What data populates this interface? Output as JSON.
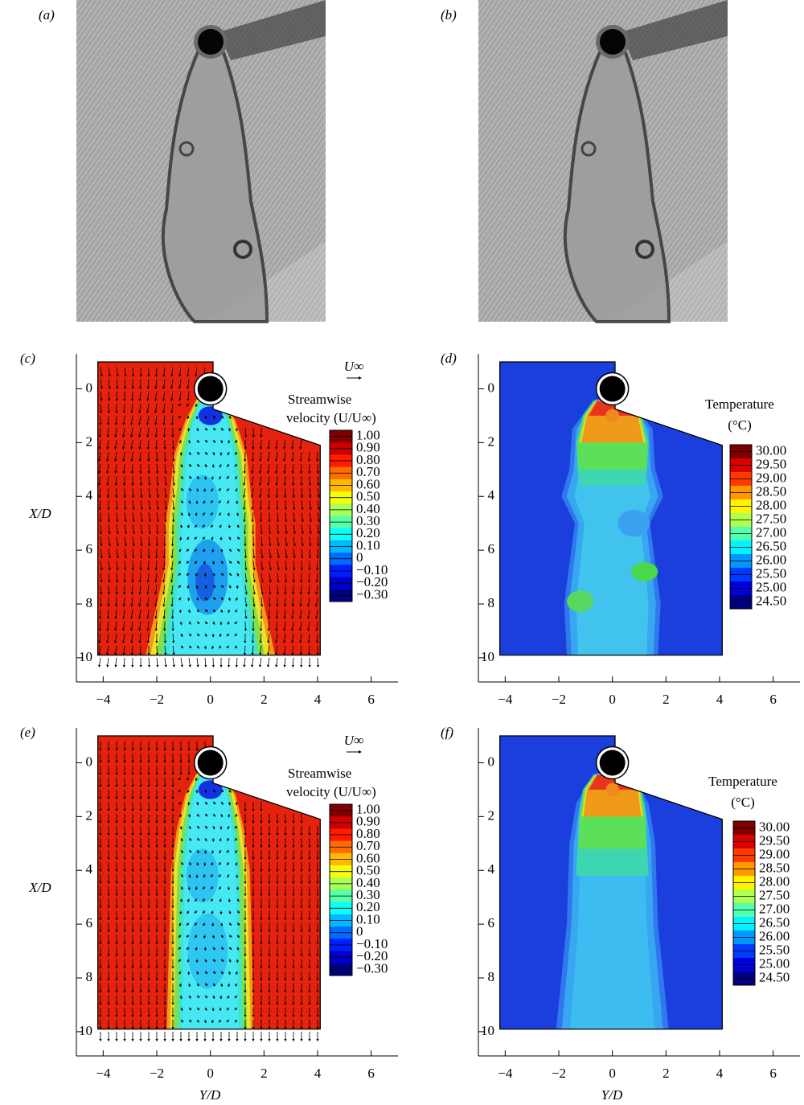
{
  "panel_labels": [
    "(a)",
    "(b)",
    "(c)",
    "(d)",
    "(e)",
    "(f)"
  ],
  "axes": {
    "xlim": [
      -5,
      7
    ],
    "ylim": [
      -1.3,
      10.9
    ],
    "y_inverted": true,
    "xticks": [
      {
        "value": -4,
        "label": "−4"
      },
      {
        "value": -2,
        "label": "−2"
      },
      0,
      2,
      4,
      6
    ],
    "yticks": [
      0,
      2,
      4,
      6,
      8,
      10
    ],
    "xlabel": "Y/D",
    "ylabel": "X/D"
  },
  "flow_label": "U∞",
  "velocity_colorbar": {
    "title": [
      "Streamwise",
      "velocity (U/U∞)"
    ],
    "levels": [
      {
        "value": 1,
        "label": "1.00"
      },
      {
        "value": 0.9,
        "label": "0.90"
      },
      {
        "value": 0.8,
        "label": "0.80"
      },
      {
        "value": 0.7,
        "label": "0.70"
      },
      {
        "value": 0.6,
        "label": "0.60"
      },
      {
        "value": 0.5,
        "label": "0.50"
      },
      {
        "value": 0.4,
        "label": "0.40"
      },
      {
        "value": 0.3,
        "label": "0.30"
      },
      {
        "value": 0.2,
        "label": "0.20"
      },
      {
        "value": 0.1,
        "label": "0.10"
      },
      0,
      {
        "value": -0.1,
        "label": "−0.10"
      },
      {
        "value": -0.2,
        "label": "−0.20"
      },
      {
        "value": -0.3,
        "label": "−0.30"
      }
    ]
  },
  "temperature_colorbar": {
    "title": [
      "Temperature",
      "(°C)"
    ],
    "levels": [
      {
        "value": 30,
        "label": "30.00"
      },
      {
        "value": 29.5,
        "label": "29.50"
      },
      {
        "value": 29,
        "label": "29.00"
      },
      {
        "value": 28.5,
        "label": "28.50"
      },
      {
        "value": 28,
        "label": "28.00"
      },
      {
        "value": 27.5,
        "label": "27.50"
      },
      {
        "value": 27,
        "label": "27.00"
      },
      {
        "value": 26.5,
        "label": "26.50"
      },
      {
        "value": 26,
        "label": "26.00"
      },
      {
        "value": 25.5,
        "label": "25.50"
      },
      {
        "value": 25,
        "label": "25.00"
      },
      {
        "value": 24.5,
        "label": "24.50"
      }
    ]
  }
}
